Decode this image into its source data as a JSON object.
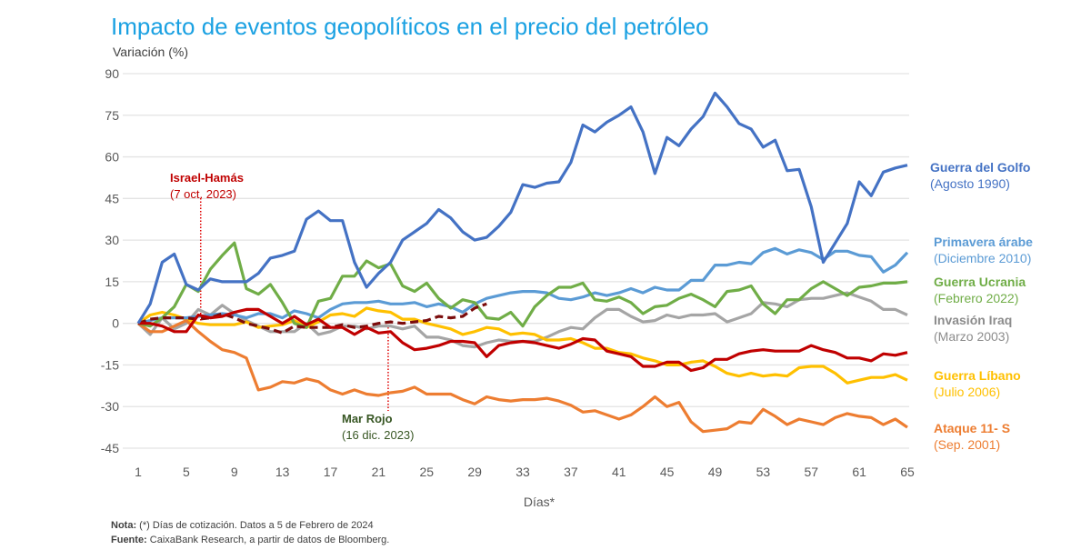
{
  "chart_data": {
    "type": "line",
    "title": "Impacto de eventos geopolíticos en el precio del petróleo",
    "ylabel": "Variación (%)",
    "xlabel": "Días*",
    "ylim": [
      -45,
      90
    ],
    "yticks": [
      90,
      75,
      60,
      45,
      30,
      15,
      0,
      -15,
      -30,
      -45
    ],
    "xticks": [
      1,
      5,
      9,
      13,
      17,
      21,
      25,
      29,
      33,
      37,
      41,
      45,
      49,
      53,
      57,
      61,
      65
    ],
    "xlim": [
      1,
      65
    ],
    "grid": "horizontal",
    "legend_placement": "right",
    "series": [
      {
        "name": "Guerra del Golfo",
        "date": "(Agosto 1990)",
        "color": "#4472C4",
        "label_color": "#4472C4",
        "style": "solid",
        "values": [
          0,
          7,
          22,
          25,
          14,
          12,
          16,
          15,
          15,
          15,
          18,
          23.5,
          24.5,
          26,
          37.5,
          40.5,
          37,
          37,
          22,
          13,
          18,
          22,
          30,
          33,
          36,
          41,
          38,
          33,
          30,
          31,
          35,
          40,
          50,
          49,
          50.5,
          51,
          58,
          71.5,
          69,
          72.5,
          75,
          78,
          69,
          54,
          67,
          64,
          70,
          74.5,
          83,
          78,
          72,
          70,
          63.5,
          66,
          55,
          55.5,
          42,
          22,
          29,
          36,
          51,
          46,
          54.5,
          56,
          57
        ]
      },
      {
        "name": "Primavera árabe",
        "date": "(Diciembre 2010)",
        "color": "#5B9BD5",
        "label_color": "#5B9BD5",
        "style": "solid",
        "values": [
          0,
          1,
          2,
          2,
          2,
          2.5,
          3,
          3.5,
          3,
          2,
          3.5,
          3.5,
          2,
          4.5,
          3.5,
          2,
          5,
          7,
          7.5,
          7.5,
          8,
          7,
          7,
          7.5,
          6,
          7,
          6,
          4,
          7,
          9,
          10,
          11,
          11.5,
          11.5,
          11,
          9,
          8.5,
          9.5,
          11,
          10,
          11,
          12.5,
          11,
          13,
          12,
          12,
          15.5,
          15.5,
          21,
          21,
          22,
          21.5,
          25.5,
          27,
          25,
          26.5,
          25.5,
          23,
          26,
          26,
          24.5,
          24,
          18.5,
          21,
          25.5
        ]
      },
      {
        "name": "Guerra Ucrania",
        "date": "(Febrero 2022)",
        "color": "#70AD47",
        "label_color": "#70AD47",
        "style": "solid",
        "values": [
          0,
          -1,
          2,
          6,
          14,
          11.5,
          19.5,
          24.5,
          29,
          12.5,
          10.5,
          14,
          7.5,
          0,
          -1.5,
          8,
          9,
          17,
          17,
          22.5,
          20,
          21.5,
          13.5,
          11.5,
          14.5,
          9,
          5.5,
          8.5,
          7.5,
          2,
          1.5,
          4,
          -1,
          6,
          10,
          13,
          13,
          14.5,
          8.5,
          8,
          9.5,
          7.5,
          3.5,
          6,
          6.5,
          9,
          10.5,
          8.5,
          6,
          11.5,
          12,
          13.5,
          7,
          3.5,
          8.5,
          8.5,
          12.5,
          15,
          12.5,
          10,
          13,
          13.5,
          14.5,
          14.5,
          15
        ]
      },
      {
        "name": "Invasión Iraq",
        "date": "(Marzo 2003)",
        "color": "#A5A5A5",
        "label_color": "#8C8C8C",
        "style": "solid",
        "values": [
          0,
          -4,
          2,
          -2,
          0,
          5,
          3,
          6.5,
          3.5,
          1,
          -1,
          -3,
          -3,
          -3,
          0,
          -4,
          -3,
          -1,
          -1,
          -2,
          -1,
          -1,
          -2,
          -1,
          -5,
          -5,
          -6,
          -8,
          -8.5,
          -7,
          -6,
          -6.5,
          -6.5,
          -6.5,
          -5,
          -3,
          -1.5,
          -2,
          2,
          5,
          5,
          2.5,
          0.5,
          1,
          3,
          2,
          3,
          3,
          3.5,
          0.5,
          2,
          3.5,
          7.5,
          7,
          6,
          8.5,
          9,
          9,
          10,
          11,
          9.5,
          8,
          5,
          5,
          3
        ]
      },
      {
        "name": "Guerra Líbano",
        "date": "(Julio 2006)",
        "color": "#FFC000",
        "label_color": "#FFC000",
        "style": "solid",
        "values": [
          0,
          3,
          4,
          3,
          1.5,
          0,
          -0.5,
          -0.5,
          -0.5,
          0.5,
          -1.5,
          -1,
          -0.5,
          1,
          -1.5,
          0.5,
          3,
          3.5,
          2.5,
          5.5,
          4.5,
          4,
          1.5,
          1.5,
          0,
          -1,
          -2,
          -4,
          -3,
          -1.5,
          -2,
          -4,
          -3.5,
          -4,
          -6,
          -6,
          -5.5,
          -7,
          -9,
          -9,
          -10.5,
          -11,
          -12.5,
          -13.5,
          -15,
          -15,
          -14,
          -13.5,
          -15.5,
          -18,
          -19,
          -18,
          -19,
          -18.5,
          -19,
          -16,
          -15.5,
          -15.5,
          -18,
          -21.5,
          -20.5,
          -19.5,
          -19.5,
          -18.5,
          -20.5
        ]
      },
      {
        "name": "Ataque 11- S",
        "date": "(Sep. 2001)",
        "color": "#ED7D31",
        "label_color": "#ED7D31",
        "style": "solid",
        "values": [
          0,
          -3,
          -3,
          -1,
          1,
          -3,
          -6.5,
          -9.5,
          -10.5,
          -12.5,
          -24,
          -23,
          -21,
          -21.5,
          -20,
          -21,
          -24,
          -25.5,
          -24,
          -25.5,
          -26,
          -25,
          -24.5,
          -23,
          -25.5,
          -25.5,
          -25.5,
          -27.5,
          -29,
          -26.5,
          -27.5,
          -28,
          -27.5,
          -27.5,
          -27,
          -28,
          -29.5,
          -32,
          -31.5,
          -33,
          -34.5,
          -33,
          -30,
          -26.5,
          -30,
          -28.5,
          -35.5,
          -39,
          -38.5,
          -38,
          -35.5,
          -36,
          -31,
          -33.5,
          -36.5,
          -34.5,
          -35.5,
          -36.5,
          -34,
          -32.5,
          -33.5,
          -34,
          -36.5,
          -34.5,
          -37.5
        ]
      },
      {
        "name": "Israel-Hamás",
        "date": "(7 oct. 2023)",
        "color": "#C00000",
        "label_color": "#C00000",
        "style": "solid",
        "values": [
          0,
          0,
          -1,
          -3,
          -3,
          3,
          2,
          2.5,
          4,
          5,
          5,
          2.5,
          0,
          2.5,
          -0.5,
          1.5,
          -1.5,
          -1.5,
          -4,
          -1.5,
          -3.5,
          -3,
          -7,
          -9.5,
          -9,
          -8,
          -6.5,
          -6.5,
          -7,
          -12,
          -8,
          -7,
          -6.5,
          -7,
          -8,
          -9,
          -7.5,
          -5.5,
          -6,
          -10,
          -11,
          -12,
          -15.5,
          -15.5,
          -14,
          -14,
          -17,
          -16,
          -13,
          -13,
          -11,
          -10,
          -9.5,
          -10,
          -10,
          -10,
          -8,
          -9.5,
          -10.5,
          -12.5,
          -12.5,
          -13.5,
          -11,
          -11.5,
          -10.5
        ]
      },
      {
        "name": "Mar Rojo",
        "date": "(16 dic. 2023)",
        "color": "#7B0C0C",
        "label_color": "#375623",
        "style": "dashed",
        "values": [
          0,
          1.5,
          2,
          2,
          2,
          1.5,
          2,
          3.5,
          2,
          0,
          -1,
          -2,
          -3.5,
          -1,
          -1.5,
          -1.5,
          -1.5,
          -0.5,
          -1.5,
          -1,
          0,
          0.5,
          0,
          0.5,
          1,
          2.5,
          2,
          2.5,
          5.5,
          7
        ]
      }
    ],
    "annotations": [
      {
        "series": "Israel-Hamás",
        "label": "Israel-Hamás",
        "sub": "(7 oct. 2023)",
        "color": "#C00000"
      },
      {
        "series": "Mar Rojo",
        "label": "Mar Rojo",
        "sub": "(16 dic. 2023)",
        "color": "#375623"
      }
    ]
  },
  "footer": {
    "note_label": "Nota:",
    "note_text": " (*) Días de cotización. Datos a 5 de Febrero de 2024",
    "source_label": "Fuente:",
    "source_text": " CaixaBank Research, a partir de datos de Bloomberg."
  }
}
